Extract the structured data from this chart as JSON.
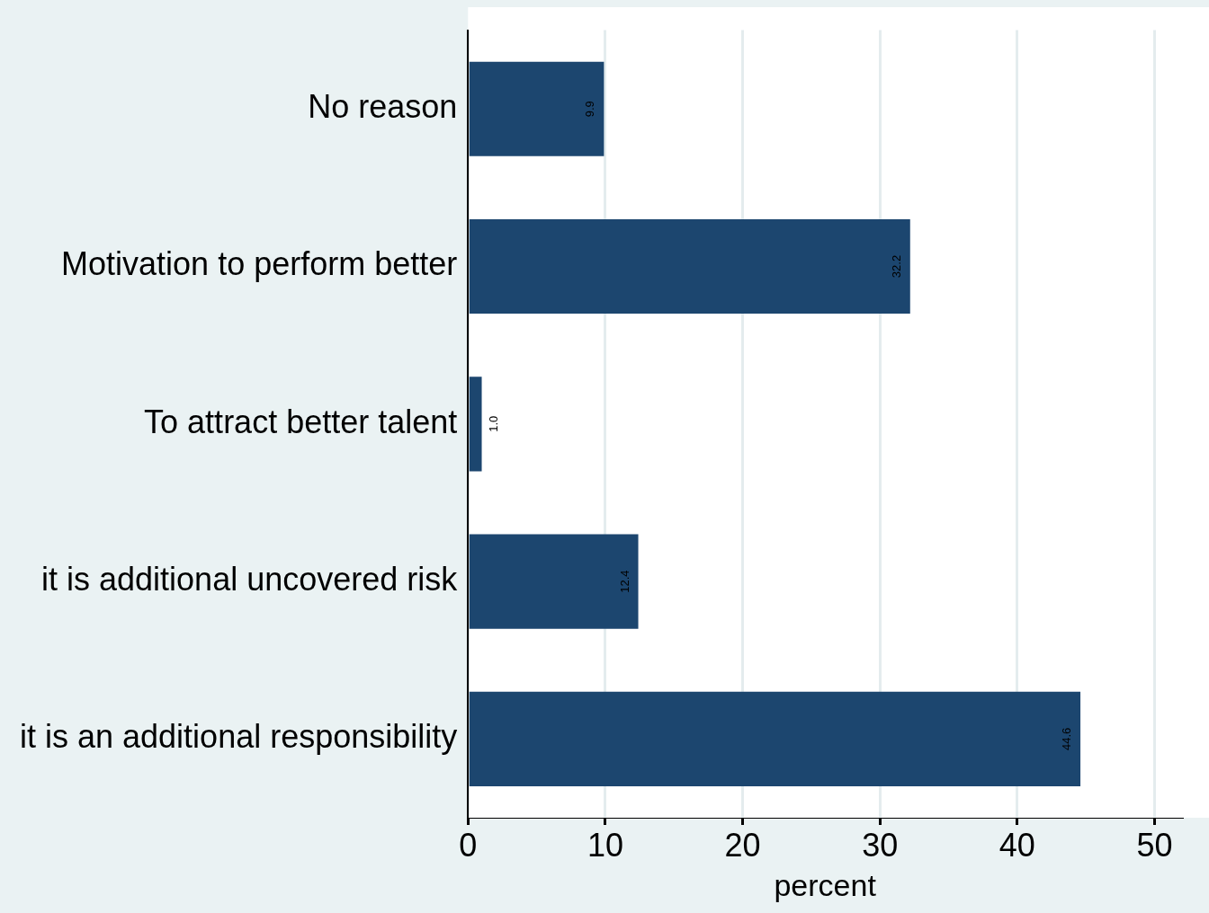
{
  "chart_data": {
    "type": "bar",
    "orientation": "horizontal",
    "categories": [
      "No reason",
      "Motivation to perform better",
      "To attract better talent",
      "it is additional uncovered risk",
      "it is an additional responsibility"
    ],
    "values": [
      9.9,
      32.2,
      1.0,
      12.4,
      44.6
    ],
    "value_labels": [
      "9.9",
      "32.2",
      "1.0",
      "12.4",
      "44.6"
    ],
    "color": "#1c466f",
    "xlabel": "percent",
    "xlim": [
      0,
      52
    ],
    "xticks": [
      0,
      10,
      20,
      30,
      40,
      50
    ],
    "grid": "x",
    "legend": false
  }
}
